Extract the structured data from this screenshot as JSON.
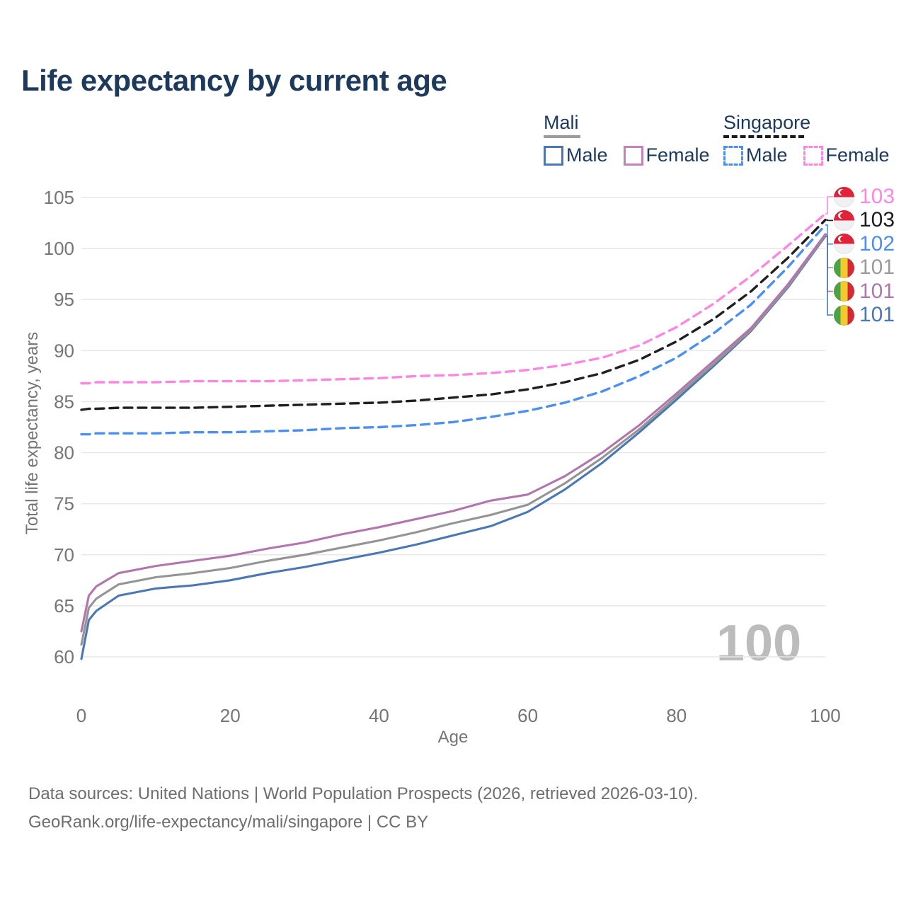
{
  "title": "Life expectancy by current age",
  "age_indicator": "100",
  "legend": {
    "groups": [
      {
        "name": "Mali",
        "line_style": "solid",
        "line_color": "#9c9c9c",
        "entries": [
          {
            "label": "Male",
            "color": "#4b77b4"
          },
          {
            "label": "Female",
            "color": "#c083c0"
          }
        ]
      },
      {
        "name": "Singapore",
        "line_style": "dashed",
        "line_color": "#1c1c1c",
        "entries": [
          {
            "label": "Male",
            "color": "#4b90ee"
          },
          {
            "label": "Female",
            "color": "#fb87e3"
          }
        ]
      }
    ]
  },
  "footer": {
    "line1": "Data sources: United Nations | World Population Prospects (2026, retrieved 2026-03-10).",
    "line2": "GeoRank.org/life-expectancy/mali/singapore | CC BY"
  },
  "chart_data": {
    "type": "line",
    "title": "Life expectancy by current age",
    "xlabel": "Age",
    "ylabel": "Total life expectancy, years",
    "xlim": [
      0,
      100
    ],
    "ylim": [
      60,
      105
    ],
    "xticks": [
      0,
      20,
      40,
      60,
      80,
      100
    ],
    "yticks": [
      60,
      65,
      70,
      75,
      80,
      85,
      90,
      95,
      100,
      105
    ],
    "grid": "horizontal",
    "legend_position": "top-right",
    "x": [
      0,
      1,
      2,
      5,
      10,
      15,
      20,
      25,
      30,
      35,
      40,
      45,
      50,
      55,
      60,
      65,
      70,
      75,
      80,
      85,
      90,
      95,
      100
    ],
    "series": [
      {
        "name": "Mali Male",
        "country": "Mali",
        "sex": "Male",
        "color": "#4b77b4",
        "dash": "solid",
        "values": [
          59.8,
          63.6,
          64.5,
          66.0,
          66.7,
          67.0,
          67.5,
          68.2,
          68.8,
          69.5,
          70.2,
          71.0,
          71.9,
          72.8,
          74.2,
          76.4,
          79.0,
          82.0,
          85.2,
          88.5,
          91.9,
          96.2,
          101.2
        ]
      },
      {
        "name": "Mali Both sexes",
        "country": "Mali",
        "sex": "Both",
        "color": "#949494",
        "dash": "solid",
        "values": [
          61.2,
          64.8,
          65.7,
          67.1,
          67.8,
          68.2,
          68.7,
          69.4,
          70.0,
          70.7,
          71.4,
          72.2,
          73.1,
          73.9,
          74.9,
          77.0,
          79.5,
          82.3,
          85.5,
          88.7,
          92.0,
          96.3,
          101.3
        ]
      },
      {
        "name": "Mali Female",
        "country": "Mali",
        "sex": "Female",
        "color": "#b176ae",
        "dash": "solid",
        "values": [
          62.5,
          66.0,
          66.9,
          68.2,
          68.9,
          69.4,
          69.9,
          70.6,
          71.2,
          72.0,
          72.7,
          73.5,
          74.3,
          75.3,
          75.9,
          77.7,
          80.0,
          82.7,
          85.8,
          89.0,
          92.2,
          96.5,
          101.4
        ]
      },
      {
        "name": "Singapore Male",
        "country": "Singapore",
        "sex": "Male",
        "color": "#4b90ee",
        "dash": "dashed",
        "values": [
          81.8,
          81.8,
          81.9,
          81.9,
          81.9,
          82.0,
          82.0,
          82.1,
          82.2,
          82.4,
          82.5,
          82.7,
          83.0,
          83.5,
          84.1,
          84.9,
          86.0,
          87.5,
          89.3,
          91.7,
          94.5,
          98.2,
          102.3
        ]
      },
      {
        "name": "Singapore Female",
        "country": "Singapore",
        "sex": "Female",
        "color": "#fb87e3",
        "dash": "dashed",
        "values": [
          86.8,
          86.8,
          86.9,
          86.9,
          86.9,
          87.0,
          87.0,
          87.0,
          87.1,
          87.2,
          87.3,
          87.5,
          87.6,
          87.8,
          88.1,
          88.6,
          89.3,
          90.5,
          92.3,
          94.6,
          97.3,
          100.3,
          103.4
        ]
      },
      {
        "name": "Singapore Both sexes",
        "country": "Singapore",
        "sex": "Both",
        "color": "#1f1f1f",
        "dash": "dashed",
        "values": [
          84.2,
          84.3,
          84.3,
          84.4,
          84.4,
          84.4,
          84.5,
          84.6,
          84.7,
          84.8,
          84.9,
          85.1,
          85.4,
          85.7,
          86.2,
          86.9,
          87.8,
          89.1,
          90.9,
          93.1,
          95.8,
          99.1,
          102.8
        ]
      }
    ],
    "end_labels": [
      {
        "series_name": "Singapore Female",
        "text": "103",
        "color": "#fb87e3",
        "flag": "singapore"
      },
      {
        "series_name": "Singapore Both sexes",
        "text": "103",
        "color": "#1c1c1c",
        "flag": "singapore"
      },
      {
        "series_name": "Singapore Male",
        "text": "102",
        "color": "#4b90ee",
        "flag": "singapore"
      },
      {
        "series_name": "Mali Both sexes",
        "text": "101",
        "color": "#9b9b9b",
        "flag": "mali"
      },
      {
        "series_name": "Mali Female",
        "text": "101",
        "color": "#b176ae",
        "flag": "mali"
      },
      {
        "series_name": "Mali Male",
        "text": "101",
        "color": "#4b77b4",
        "flag": "mali"
      }
    ]
  }
}
